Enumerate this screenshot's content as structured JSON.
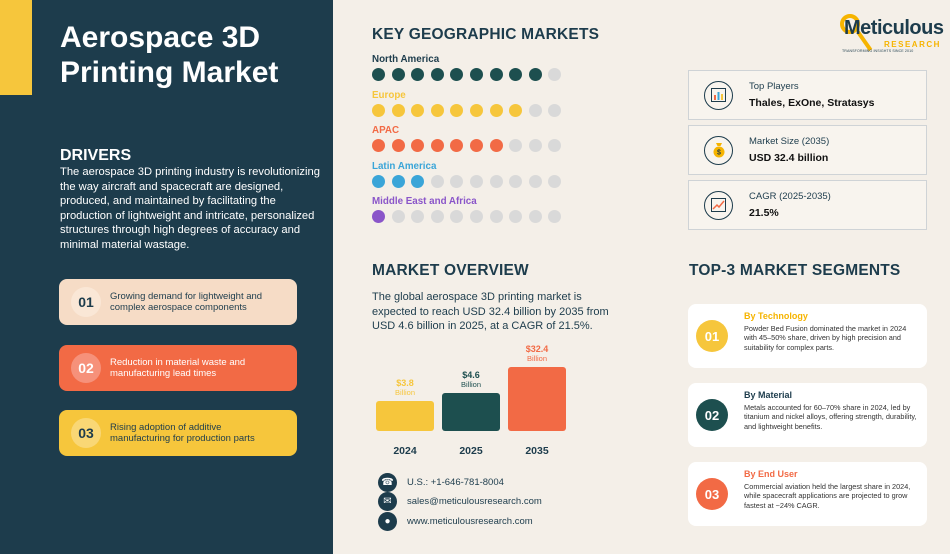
{
  "title": "Aerospace 3D Printing Market",
  "drivers": {
    "heading": "DRIVERS",
    "text": "The aerospace 3D printing industry is revolutionizing the way aircraft and spacecraft are designed, produced, and maintained by facilitating the production of lightweight and intricate, personalized structures through high degrees of accuracy and minimal material wastage.",
    "items": [
      {
        "num": "01",
        "label": "Growing demand for lightweight and complex aerospace components"
      },
      {
        "num": "02",
        "label": "Reduction in material waste and manufacturing lead times"
      },
      {
        "num": "03",
        "label": "Rising adoption of additive manufacturing for production parts"
      }
    ]
  },
  "geo": {
    "heading": "KEY GEOGRAPHIC MARKETS",
    "regions": [
      {
        "name": "North America",
        "filled": 9,
        "total": 10,
        "color": "#1d4f4f"
      },
      {
        "name": "Europe",
        "filled": 8,
        "total": 10,
        "color": "#f6c63c"
      },
      {
        "name": "APAC",
        "filled": 7,
        "total": 10,
        "color": "#f26a45"
      },
      {
        "name": "Latin America",
        "filled": 3,
        "total": 10,
        "color": "#3aa5d8"
      },
      {
        "name": "Middle East and Africa",
        "filled": 1,
        "total": 10,
        "color": "#8a55c9"
      }
    ]
  },
  "logo": {
    "name": "Meticulous",
    "sub": "RESEARCH",
    "tagline": "TRANSFORMING INSIGHTS SINCE 2010"
  },
  "stats": [
    {
      "label": "Top Players",
      "value": "Thales, ExOne, Stratasys",
      "icon": "chart-icon"
    },
    {
      "label": "Market Size (2035)",
      "value": "USD 32.4 billion",
      "icon": "money-bag-icon"
    },
    {
      "label": "CAGR (2025-2035)",
      "value": "21.5%",
      "icon": "growth-chart-icon"
    }
  ],
  "overview": {
    "heading": "MARKET OVERVIEW",
    "text": "The global aerospace 3D printing market is expected to reach USD 32.4 billion by 2035 from USD 4.6 billion in 2025, at a CAGR of 21.5%."
  },
  "chart_data": {
    "type": "bar",
    "categories": [
      "2024",
      "2025",
      "2035"
    ],
    "values": [
      3.8,
      4.6,
      32.4
    ],
    "value_labels": [
      "$3.8",
      "$4.6",
      "$32.4"
    ],
    "unit": "Billion",
    "colors": [
      "#f6c63c",
      "#1d4f4f",
      "#f26a45"
    ]
  },
  "contact": {
    "phone": "U.S.: +1-646-781-8004",
    "email": "sales@meticulousresearch.com",
    "web": "www.meticulousresearch.com"
  },
  "segments": {
    "heading": "TOP-3 MARKET SEGMENTS",
    "items": [
      {
        "num": "01",
        "title": "By Technology",
        "color": "#f6c63c",
        "text": "Powder Bed Fusion dominated the market in 2024 with 45–50% share, driven by high precision and suitability for complex parts."
      },
      {
        "num": "02",
        "title": "By Material",
        "color": "#1d4f4f",
        "text": "Metals accounted for 60–70% share in 2024, led by titanium and nickel alloys, offering strength, durability, and lightweight benefits."
      },
      {
        "num": "03",
        "title": "By End User",
        "color": "#f26a45",
        "text": "Commercial aviation held the largest share in 2024, while spacecraft applications are projected to grow fastest at ~24% CAGR."
      }
    ]
  }
}
